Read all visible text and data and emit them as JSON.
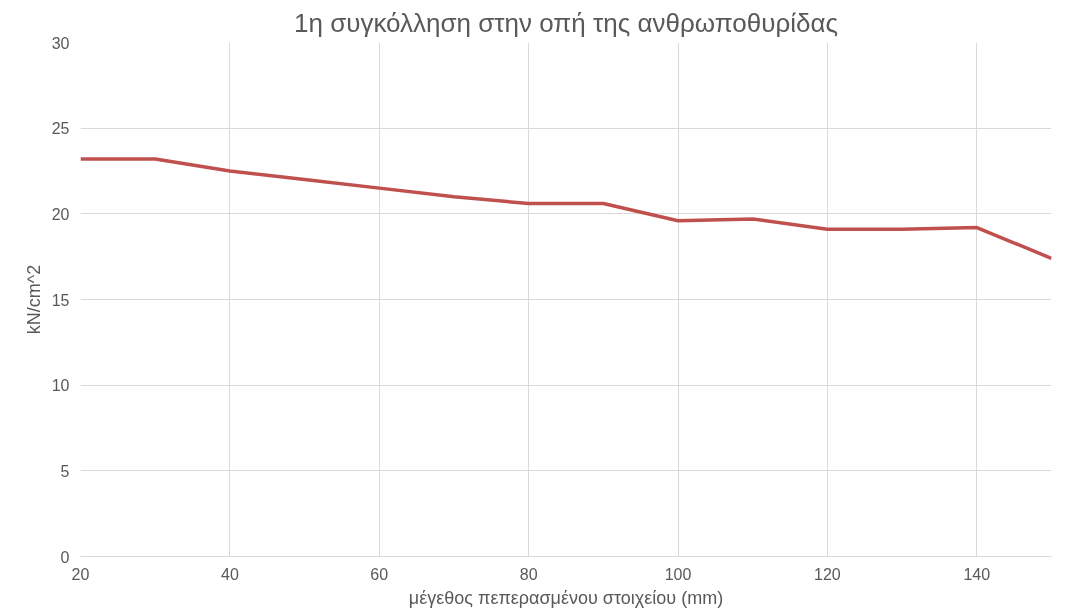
{
  "chart_data": {
    "type": "line",
    "title": "1η συγκόλληση στην οπή της ανθρωποθυρίδας",
    "xlabel": "μέγεθος πεπερασμένου στοιχείου (mm)",
    "ylabel": "kN/cm^2",
    "x": [
      20,
      30,
      40,
      50,
      60,
      70,
      80,
      90,
      100,
      110,
      120,
      130,
      140,
      150
    ],
    "series": [
      {
        "color": "#c0504d",
        "values": [
          23.2,
          23.2,
          22.5,
          22.0,
          21.5,
          21.0,
          20.6,
          20.6,
          19.6,
          19.7,
          19.1,
          19.1,
          19.2,
          17.4
        ]
      }
    ],
    "xlim": [
      20,
      150
    ],
    "ylim": [
      0,
      30
    ],
    "xticks": [
      20,
      40,
      60,
      80,
      100,
      120,
      140
    ],
    "yticks": [
      0,
      5,
      10,
      15,
      20,
      25,
      30
    ],
    "grid": true,
    "marker": "none",
    "line_style": "solid"
  }
}
